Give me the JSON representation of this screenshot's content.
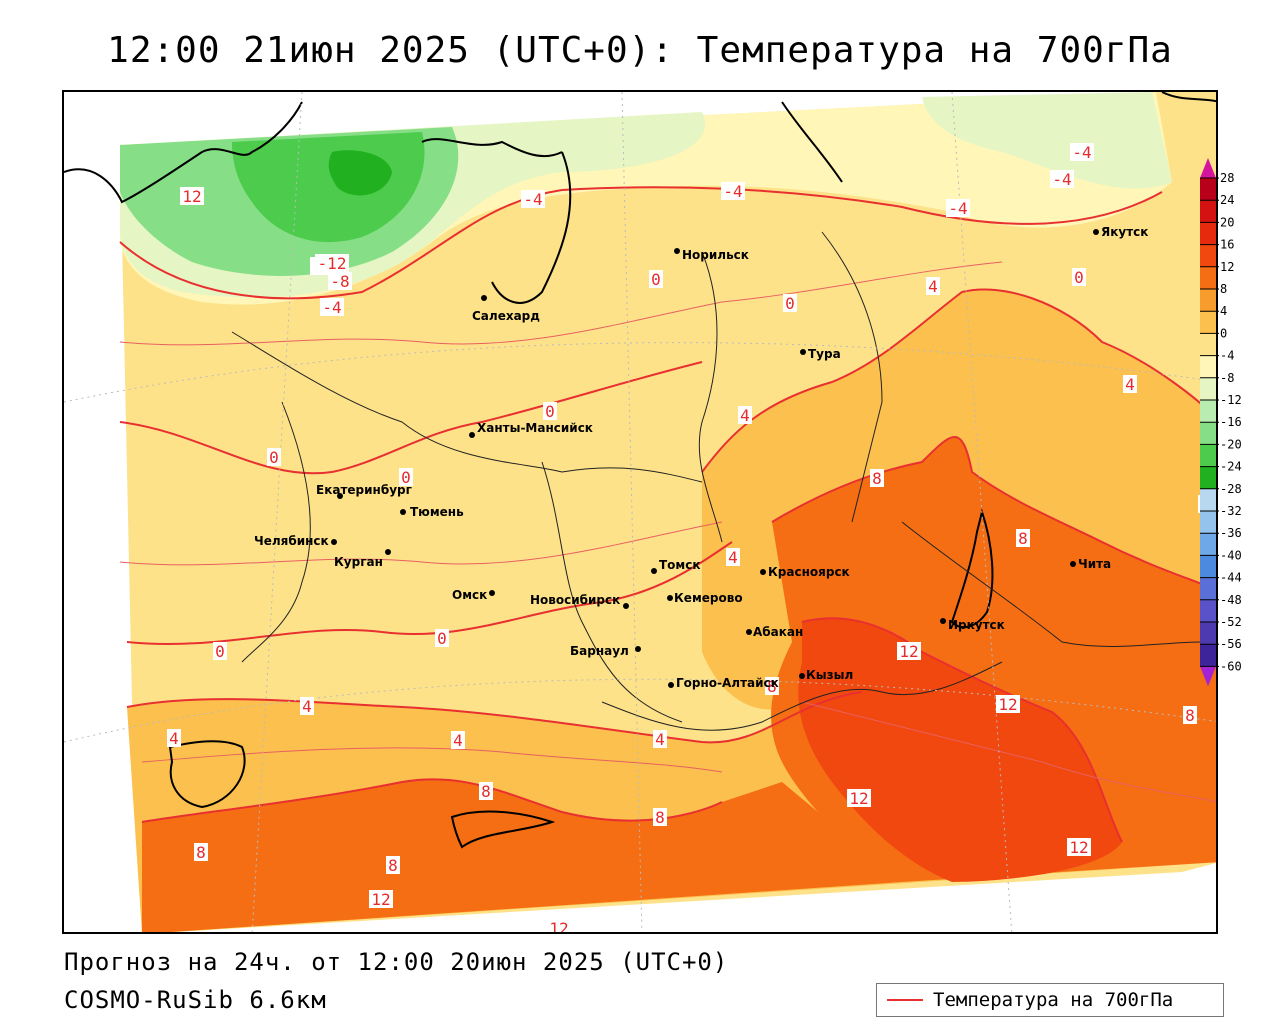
{
  "title": "12:00 21июн 2025 (UTC+0): Температура на 700гПа",
  "footer": {
    "forecast": "Прогноз на 24ч. от 12:00 20июн 2025 (UTC+0)",
    "model": "COSMO-RuSib 6.6км"
  },
  "legend": {
    "label": "Температура на 700гПа",
    "line_color": "#e83030"
  },
  "colorbar": {
    "ticks": [
      "28",
      "24",
      "20",
      "16",
      "12",
      "8",
      "4",
      "0",
      "-4",
      "-8",
      "-12",
      "-16",
      "-20",
      "-24",
      "-28",
      "-32",
      "-36",
      "-40",
      "-44",
      "-48",
      "-52",
      "-56",
      "-60"
    ],
    "colors": [
      "#b8001a",
      "#d41212",
      "#e62a0e",
      "#f0480f",
      "#f56e14",
      "#f99c2e",
      "#fcc04e",
      "#fde28a",
      "#fff6b8",
      "#e6f5c4",
      "#b8ecb0",
      "#86df86",
      "#4ccb4c",
      "#20b020",
      "#b8d8f0",
      "#94c4ee",
      "#6ea8e8",
      "#4c8ae0",
      "#5a6fd8",
      "#5a52c8",
      "#4e3ab0",
      "#3e249a",
      "#2c0e84"
    ],
    "top_arrow_color": "#d4149c",
    "bottom_arrow_color": "#a424d4"
  },
  "cities": [
    {
      "name": "Норильск",
      "id": "norilsk"
    },
    {
      "name": "Якутск",
      "id": "yakutsk"
    },
    {
      "name": "Салехард",
      "id": "salekhard"
    },
    {
      "name": "Тура",
      "id": "tura"
    },
    {
      "name": "Ханты-Мансийск",
      "id": "khanty"
    },
    {
      "name": "Екатеринбург",
      "id": "ekb"
    },
    {
      "name": "Тюмень",
      "id": "tyumen"
    },
    {
      "name": "Челябинск",
      "id": "chel"
    },
    {
      "name": "Курган",
      "id": "kurgan"
    },
    {
      "name": "Омск",
      "id": "omsk"
    },
    {
      "name": "Новосибирск",
      "id": "nsk"
    },
    {
      "name": "Томск",
      "id": "tomsk"
    },
    {
      "name": "Кемерово",
      "id": "kemerovo"
    },
    {
      "name": "Барнаул",
      "id": "barnaul"
    },
    {
      "name": "Горно-Алтайск",
      "id": "gorno"
    },
    {
      "name": "Красноярск",
      "id": "krsk"
    },
    {
      "name": "Абакан",
      "id": "abakan"
    },
    {
      "name": "Кызыл",
      "id": "kyzyl"
    },
    {
      "name": "Иркутск",
      "id": "irk"
    },
    {
      "name": "Чита",
      "id": "chita"
    }
  ],
  "isotherm_labels": [
    "-8",
    "-12",
    "-8",
    "-4",
    "-4",
    "-4",
    "-4",
    "-4",
    "-4",
    "0",
    "0",
    "0",
    "0",
    "0",
    "0",
    "0",
    "0",
    "4",
    "4",
    "4",
    "4",
    "4",
    "4",
    "4",
    "4",
    "4",
    "8",
    "8",
    "8",
    "8",
    "8",
    "8",
    "8",
    "8",
    "12",
    "12",
    "12",
    "12",
    "12",
    "12",
    "12"
  ]
}
